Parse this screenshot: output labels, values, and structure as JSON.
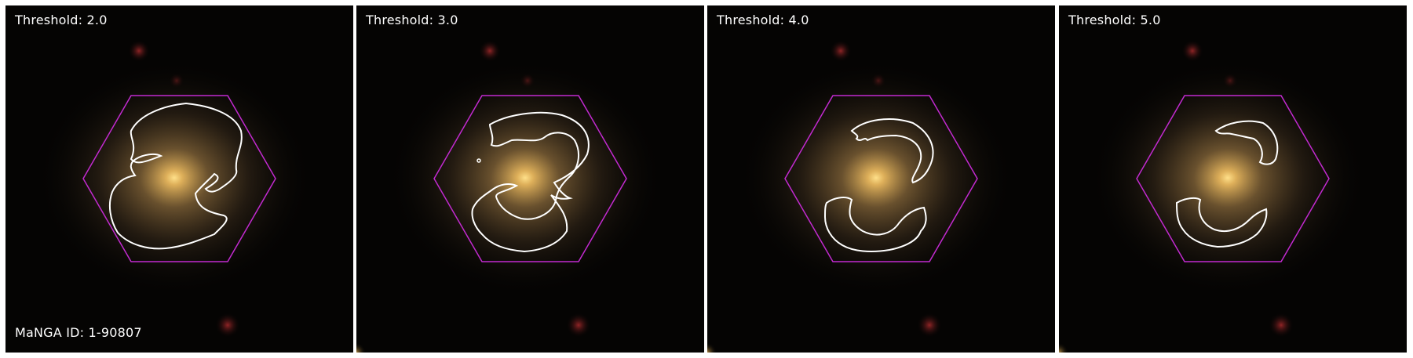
{
  "manga_id_label": "MaNGA ID: 1-90807",
  "panels": [
    {
      "threshold_label": "Threshold: 2.0"
    },
    {
      "threshold_label": "Threshold: 3.0"
    },
    {
      "threshold_label": "Threshold: 4.0"
    },
    {
      "threshold_label": "Threshold: 5.0"
    }
  ],
  "colors": {
    "hexagon": "#c22ad0",
    "contour": "#ffffff",
    "galaxy_core": "#ffe08a",
    "sky": "#050403"
  }
}
